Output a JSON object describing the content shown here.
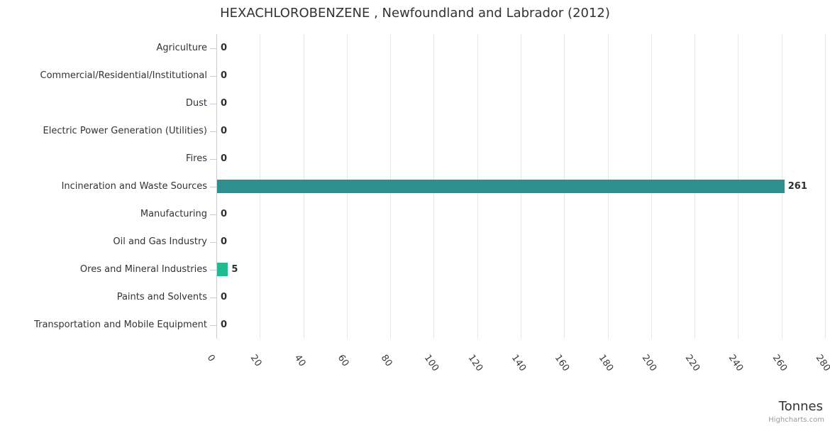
{
  "header": {
    "title": "HEXACHLOROBENZENE , Newfoundland and Labrador (2012)"
  },
  "axis": {
    "title": "Tonnes"
  },
  "credit_label": "Highcharts.com",
  "chart_data": {
    "type": "bar",
    "orientation": "horizontal",
    "title": "HEXACHLOROBENZENE , Newfoundland and Labrador (2012)",
    "categories": [
      "Agriculture",
      "Commercial/Residential/Institutional",
      "Dust",
      "Electric Power Generation (Utilities)",
      "Fires",
      "Incineration and Waste Sources",
      "Manufacturing",
      "Oil and Gas Industry",
      "Ores and Mineral Industries",
      "Paints and Solvents",
      "Transportation and Mobile Equipment"
    ],
    "values": [
      0,
      0,
      0,
      0,
      0,
      261,
      0,
      0,
      5,
      0,
      0
    ],
    "data_labels": [
      "0",
      "0",
      "0",
      "0",
      "0",
      "261",
      "0",
      "0",
      "5",
      "0",
      "0"
    ],
    "point_colors": [
      "#2b908f",
      "#2b908f",
      "#2b908f",
      "#2b908f",
      "#2b908f",
      "#2e8f8e",
      "#2b908f",
      "#2b908f",
      "#1ebc90",
      "#2b908f",
      "#2b908f"
    ],
    "xlabel": "Tonnes",
    "ylabel": "",
    "xlim": [
      0,
      280
    ],
    "tick_interval": 20,
    "ticks": [
      0,
      20,
      40,
      60,
      80,
      100,
      120,
      140,
      160,
      180,
      200,
      220,
      240,
      260,
      280
    ],
    "tick_label_rotation_deg": 55,
    "grid": true,
    "legend": "none",
    "colors": {
      "grid": "#e6e6e6",
      "axis_line": "#c0d0e0",
      "title_text": "#333333",
      "label_text": "#333333",
      "data_label_text": "#2f2f2f",
      "credit_text": "#999999"
    }
  }
}
